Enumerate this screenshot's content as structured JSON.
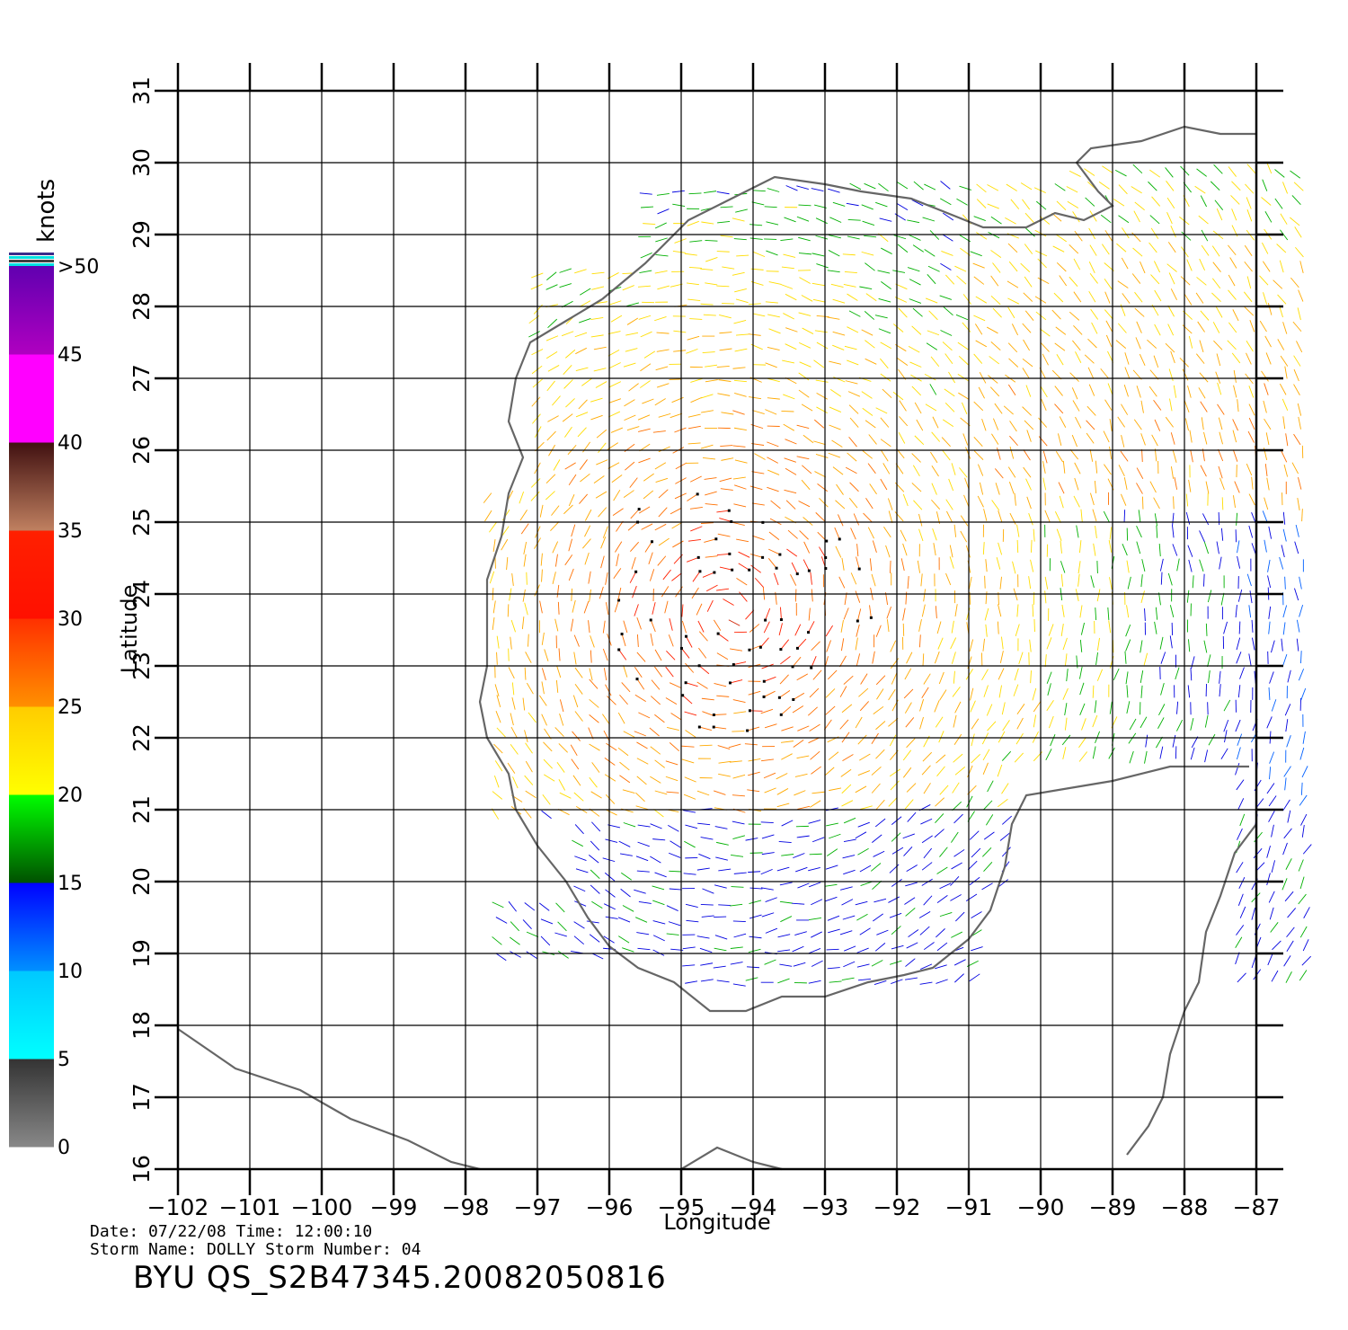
{
  "map": {
    "xlabel": "Longitude",
    "ylabel": "Latitude",
    "lon_range": [
      -102,
      -87
    ],
    "lat_range": [
      16,
      31
    ],
    "lon_ticks": [
      "−102",
      "−101",
      "−100",
      "−99",
      "−98",
      "−97",
      "−96",
      "−95",
      "−94",
      "−93",
      "−92",
      "−91",
      "−90",
      "−89",
      "−88",
      "−87"
    ],
    "lat_ticks": [
      "16",
      "17",
      "18",
      "19",
      "20",
      "21",
      "22",
      "23",
      "24",
      "25",
      "26",
      "27",
      "28",
      "29",
      "30",
      "31"
    ],
    "grid": true,
    "coastline_color": "#666666"
  },
  "legend": {
    "unit": "knots",
    "labels": [
      "0",
      "5",
      "10",
      "15",
      "20",
      "25",
      "30",
      "35",
      "40",
      "45",
      ">50"
    ],
    "colors": [
      "#777777",
      "#00f0ff",
      "#0060ff",
      "#00a000",
      "#ffee00",
      "#ff8000",
      "#ff2000",
      "#a06040",
      "#ff00ff",
      "#8000ff"
    ]
  },
  "footer": {
    "line1": "Date: 07/22/08   Time: 12:00:10",
    "line2": "Storm  Name: DOLLY   Storm  Number: 04",
    "title": "BYU  QS_S2B47345.20082050816"
  }
}
